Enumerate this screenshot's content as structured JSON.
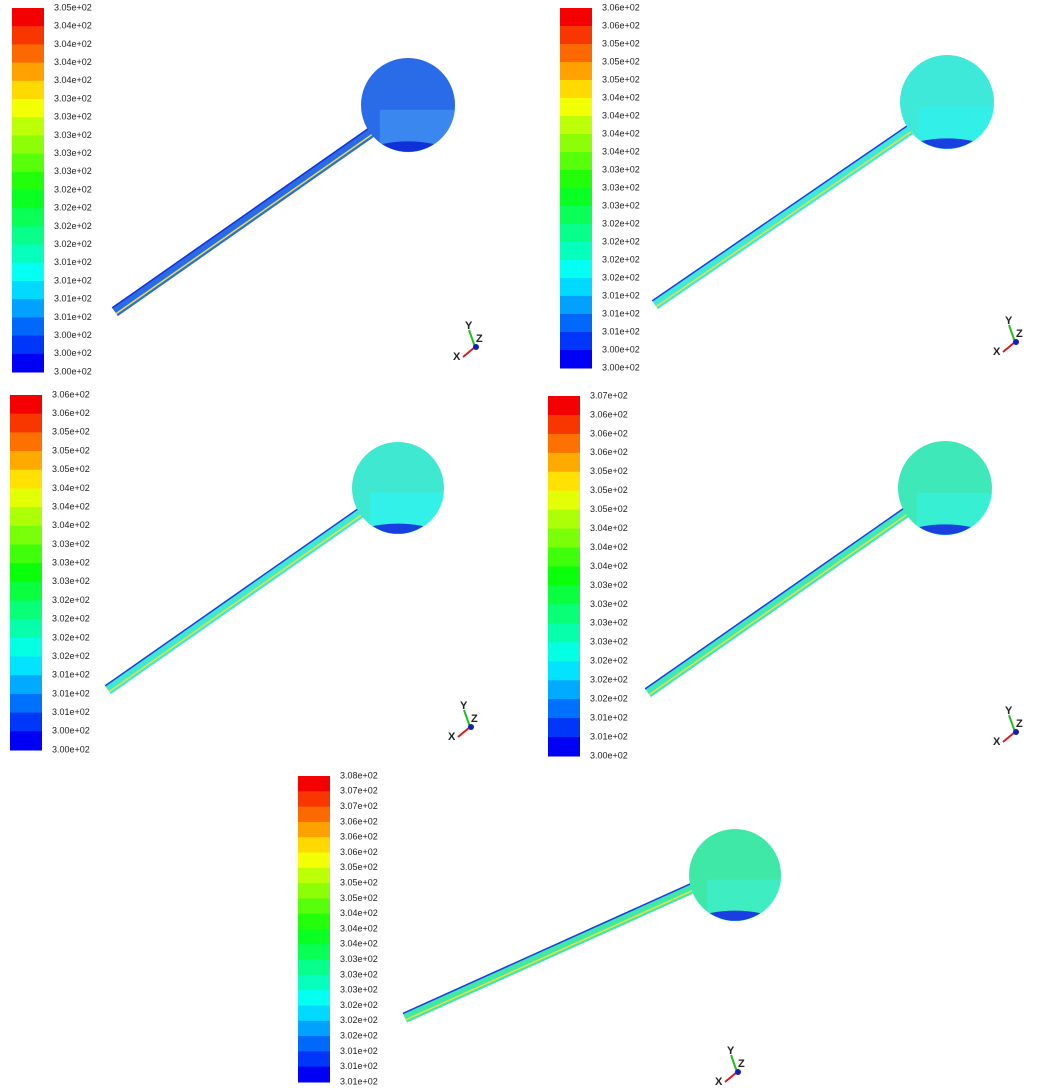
{
  "panels": [
    {
      "legend_labels": [
        "3.05e+02",
        "3.04e+02",
        "3.04e+02",
        "3.04e+02",
        "3.04e+02",
        "3.03e+02",
        "3.03e+02",
        "3.03e+02",
        "3.03e+02",
        "3.03e+02",
        "3.02e+02",
        "3.02e+02",
        "3.02e+02",
        "3.02e+02",
        "3.01e+02",
        "3.01e+02",
        "3.01e+02",
        "3.01e+02",
        "3.00e+02",
        "3.00e+02",
        "3.00e+02"
      ]
    },
    {
      "legend_labels": [
        "3.06e+02",
        "3.06e+02",
        "3.05e+02",
        "3.05e+02",
        "3.05e+02",
        "3.04e+02",
        "3.04e+02",
        "3.04e+02",
        "3.04e+02",
        "3.03e+02",
        "3.03e+02",
        "3.03e+02",
        "3.02e+02",
        "3.02e+02",
        "3.02e+02",
        "3.02e+02",
        "3.01e+02",
        "3.01e+02",
        "3.01e+02",
        "3.00e+02",
        "3.00e+02"
      ]
    },
    {
      "legend_labels": [
        "3.06e+02",
        "3.06e+02",
        "3.05e+02",
        "3.05e+02",
        "3.05e+02",
        "3.04e+02",
        "3.04e+02",
        "3.04e+02",
        "3.03e+02",
        "3.03e+02",
        "3.03e+02",
        "3.02e+02",
        "3.02e+02",
        "3.02e+02",
        "3.02e+02",
        "3.01e+02",
        "3.01e+02",
        "3.01e+02",
        "3.00e+02",
        "3.00e+02"
      ]
    },
    {
      "legend_labels": [
        "3.07e+02",
        "3.06e+02",
        "3.06e+02",
        "3.06e+02",
        "3.05e+02",
        "3.05e+02",
        "3.05e+02",
        "3.04e+02",
        "3.04e+02",
        "3.04e+02",
        "3.03e+02",
        "3.03e+02",
        "3.03e+02",
        "3.03e+02",
        "3.02e+02",
        "3.02e+02",
        "3.02e+02",
        "3.01e+02",
        "3.01e+02",
        "3.00e+02"
      ]
    },
    {
      "legend_labels": [
        "3.08e+02",
        "3.07e+02",
        "3.07e+02",
        "3.06e+02",
        "3.06e+02",
        "3.06e+02",
        "3.05e+02",
        "3.05e+02",
        "3.05e+02",
        "3.04e+02",
        "3.04e+02",
        "3.04e+02",
        "3.03e+02",
        "3.03e+02",
        "3.03e+02",
        "3.02e+02",
        "3.02e+02",
        "3.02e+02",
        "3.01e+02",
        "3.01e+02",
        "3.01e+02"
      ]
    }
  ],
  "triad": {
    "x": "X",
    "y": "Y",
    "z": "Z"
  }
}
